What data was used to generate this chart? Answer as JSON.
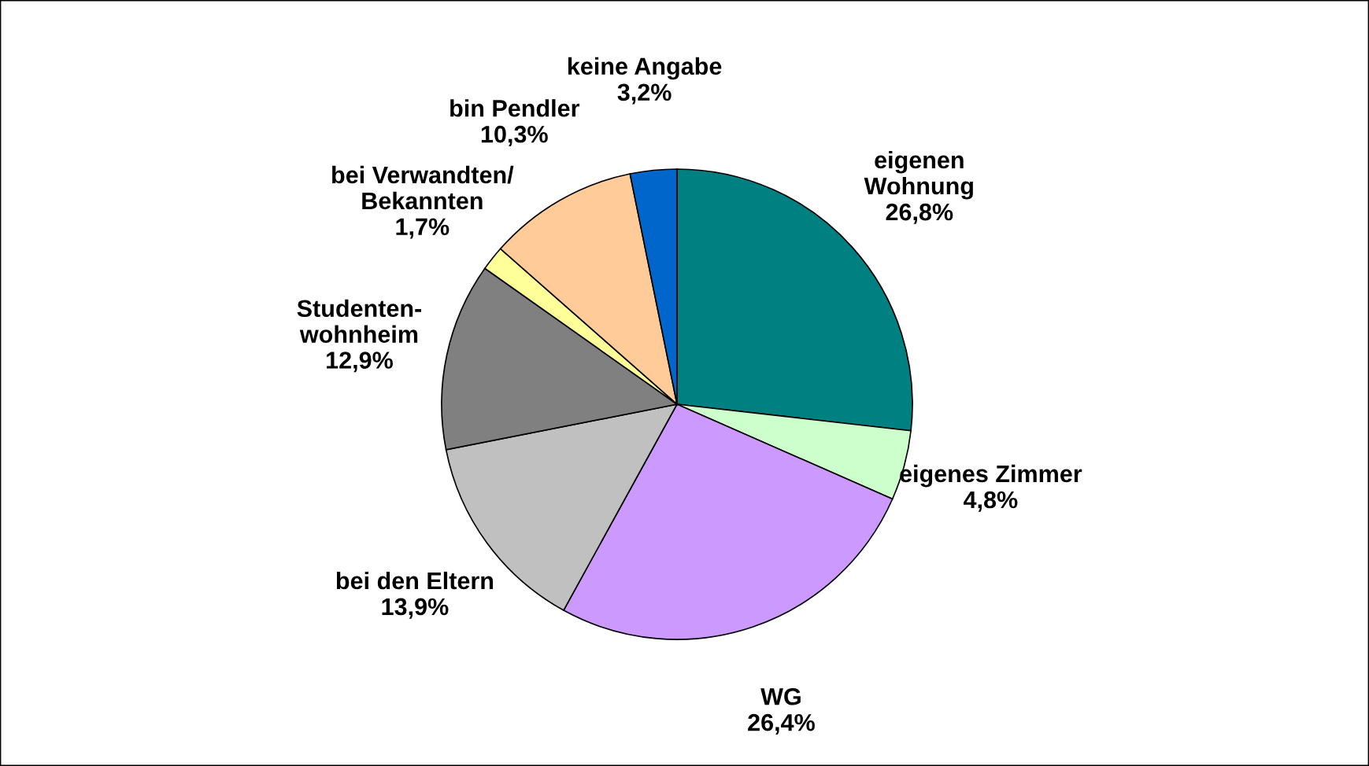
{
  "chart_data": {
    "type": "pie",
    "categories": [
      "eigenen\nWohnung",
      "eigenes Zimmer",
      "WG",
      "bei den Eltern",
      "Studenten-\nwohnheim",
      "bei Verwandten/\nBekannten",
      "bin Pendler",
      "keine Angabe"
    ],
    "values": [
      26.8,
      4.8,
      26.4,
      13.9,
      12.9,
      1.7,
      10.3,
      3.2
    ],
    "value_labels": [
      "26,8%",
      "4,8%",
      "26,4%",
      "13,9%",
      "12,9%",
      "1,7%",
      "10,3%",
      "3,2%"
    ],
    "colors": [
      "#008080",
      "#ccffcc",
      "#cc99ff",
      "#c0c0c0",
      "#808080",
      "#ffff99",
      "#ffcc99",
      "#0066cc"
    ]
  }
}
